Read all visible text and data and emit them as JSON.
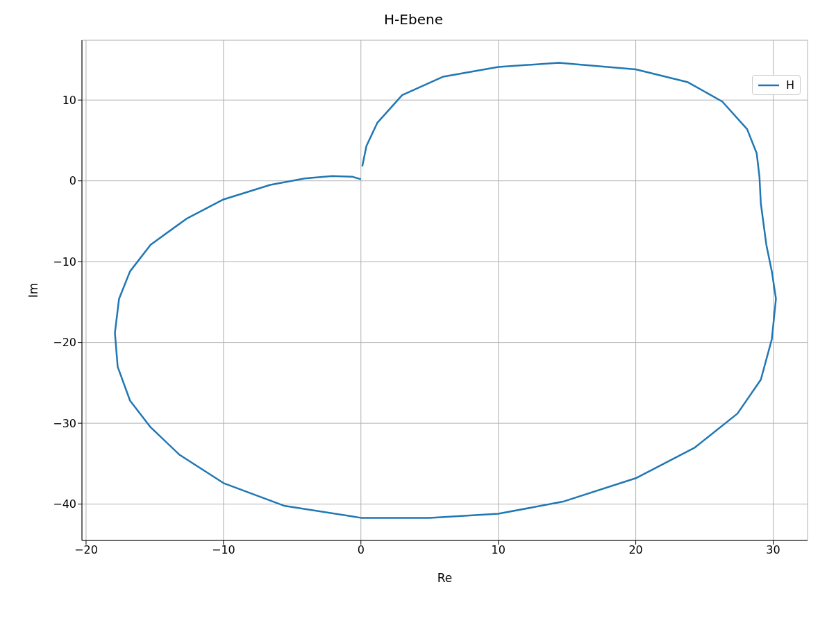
{
  "chart_data": {
    "type": "line",
    "title": "H-Ebene",
    "xlabel": "Re",
    "ylabel": "Im",
    "xlim": [
      -20.3,
      32.5
    ],
    "ylim": [
      -44.5,
      17.4
    ],
    "xticks": [
      {
        "value": -20,
        "label": "−20"
      },
      {
        "value": -10,
        "label": "−10"
      },
      0,
      10,
      20,
      30
    ],
    "yticks": [
      {
        "value": -40,
        "label": "−40"
      },
      {
        "value": -30,
        "label": "−30"
      },
      {
        "value": -20,
        "label": "−20"
      },
      {
        "value": -10,
        "label": "−10"
      },
      0,
      10
    ],
    "grid": true,
    "legend": "top right",
    "line_style": "solid",
    "marker": "none",
    "series": [
      {
        "name": "H",
        "color": "#1f77b4",
        "x": [
          0,
          -0.6,
          -2.1,
          -4.1,
          -6.6,
          -10,
          -12.7,
          -15.3,
          -16.8,
          -17.6,
          -17.9,
          -17.7,
          -16.8,
          -15.3,
          -13.2,
          -10,
          -5.6,
          0,
          5,
          10,
          14.7,
          20,
          24.3,
          27.4,
          29.1,
          29.9,
          30.2,
          29.9,
          29.5,
          29.1,
          29,
          28.8,
          28.1,
          26.3,
          23.8,
          20,
          14.4,
          10,
          6,
          3,
          1.2,
          0.4,
          0.1
        ],
        "values": [
          0.2,
          0.5,
          0.6,
          0.3,
          -0.5,
          -2.3,
          -4.7,
          -7.9,
          -11.2,
          -14.6,
          -18.8,
          -23,
          -27.2,
          -30.5,
          -33.9,
          -37.4,
          -40.2,
          -41.7,
          -41.7,
          -41.2,
          -39.7,
          -36.8,
          -33,
          -28.8,
          -24.6,
          -19.6,
          -14.6,
          -11.2,
          -7.9,
          -2.8,
          0.5,
          3.4,
          6.4,
          9.8,
          12.2,
          13.8,
          14.6,
          14.1,
          12.9,
          10.6,
          7.2,
          4.3,
          1.8
        ]
      }
    ]
  }
}
